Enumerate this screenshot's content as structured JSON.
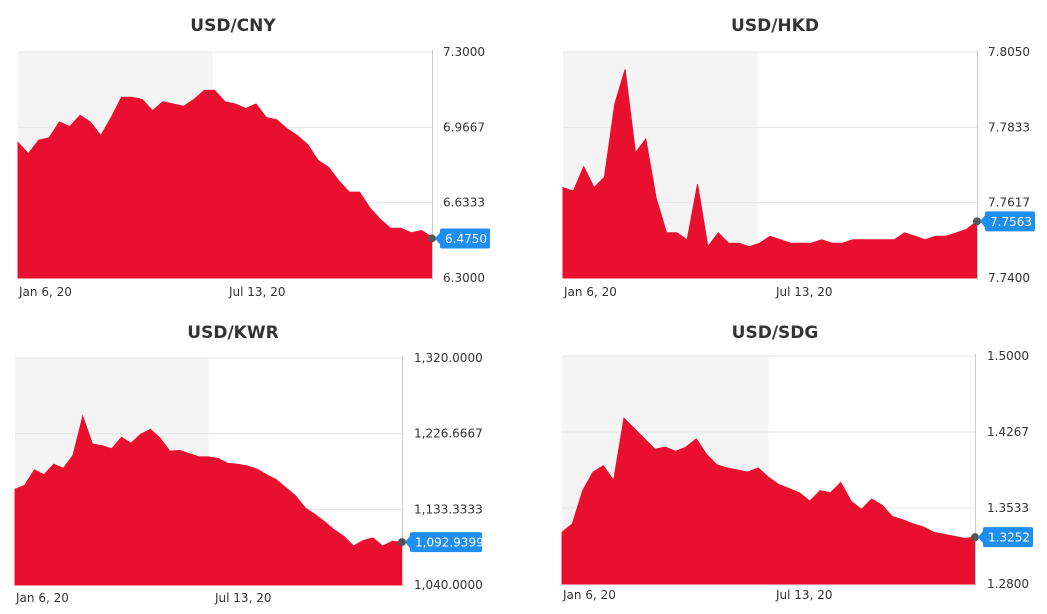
{
  "colors": {
    "area": "#e8102e",
    "shade": "#f4f4f4",
    "grid": "#e6e6e6",
    "badge": "#1f8ef1",
    "axis": "#cccccc"
  },
  "chart_data": [
    {
      "type": "area",
      "title": "USD/CNY",
      "x_ticks": [
        "Jan 6, 20",
        "Jul 13, 20"
      ],
      "y_ticks": [
        "7.3000",
        "6.9667",
        "6.6333",
        "6.3000"
      ],
      "ylim": [
        6.3,
        7.3
      ],
      "current_label": "6.4750",
      "current_value": 6.475,
      "shaded_range": [
        0,
        0.47
      ],
      "values": [
        6.9,
        6.85,
        6.91,
        6.92,
        6.99,
        6.97,
        7.02,
        6.99,
        6.93,
        7.01,
        7.1,
        7.1,
        7.09,
        7.04,
        7.08,
        7.07,
        7.06,
        7.09,
        7.13,
        7.13,
        7.08,
        7.07,
        7.05,
        7.07,
        7.01,
        7.0,
        6.96,
        6.93,
        6.89,
        6.82,
        6.79,
        6.73,
        6.68,
        6.68,
        6.61,
        6.56,
        6.52,
        6.52,
        6.5,
        6.51,
        6.48
      ]
    },
    {
      "type": "area",
      "title": "USD/HKD",
      "x_ticks": [
        "Jan 6, 20",
        "Jul 13, 20"
      ],
      "y_ticks": [
        "7.8050",
        "7.7833",
        "7.7617",
        "7.7400"
      ],
      "ylim": [
        7.74,
        7.805
      ],
      "current_label": "7.7563",
      "current_value": 7.7563,
      "shaded_range": [
        0,
        0.47
      ],
      "values": [
        7.766,
        7.765,
        7.772,
        7.766,
        7.769,
        7.79,
        7.8,
        7.776,
        7.78,
        7.763,
        7.753,
        7.753,
        7.751,
        7.767,
        7.749,
        7.753,
        7.75,
        7.75,
        7.749,
        7.75,
        7.752,
        7.751,
        7.75,
        7.75,
        7.75,
        7.751,
        7.75,
        7.75,
        7.751,
        7.751,
        7.751,
        7.751,
        7.751,
        7.753,
        7.752,
        7.751,
        7.752,
        7.752,
        7.753,
        7.754,
        7.7563
      ]
    },
    {
      "type": "area",
      "title": "USD/KWR",
      "x_ticks": [
        "Jan 6, 20",
        "Jul 13, 20"
      ],
      "y_ticks": [
        "1,320.0000",
        "1,226.6667",
        "1,133.3333",
        "1,040.0000"
      ],
      "ylim": [
        1040,
        1320
      ],
      "current_label": "1,092.9399",
      "current_value": 1092.9399,
      "shaded_range": [
        0,
        0.5
      ],
      "values": [
        1158,
        1163,
        1182,
        1176,
        1189,
        1184,
        1200,
        1248,
        1214,
        1212,
        1208,
        1222,
        1215,
        1226,
        1232,
        1221,
        1205,
        1206,
        1202,
        1198,
        1198,
        1196,
        1190,
        1189,
        1187,
        1183,
        1176,
        1170,
        1160,
        1150,
        1135,
        1127,
        1118,
        1108,
        1100,
        1088,
        1095,
        1098,
        1088,
        1094,
        1092.94
      ]
    },
    {
      "type": "area",
      "title": "USD/SDG",
      "x_ticks": [
        "Jan 6, 20",
        "Jul 13, 20"
      ],
      "y_ticks": [
        "1.5000",
        "1.4267",
        "1.3533",
        "1.2800"
      ],
      "ylim": [
        1.28,
        1.5
      ],
      "current_label": "1.3252",
      "current_value": 1.3252,
      "shaded_range": [
        0,
        0.5
      ],
      "values": [
        1.33,
        1.338,
        1.37,
        1.388,
        1.394,
        1.38,
        1.44,
        1.43,
        1.42,
        1.41,
        1.412,
        1.408,
        1.412,
        1.42,
        1.405,
        1.395,
        1.392,
        1.39,
        1.388,
        1.392,
        1.383,
        1.376,
        1.372,
        1.368,
        1.36,
        1.37,
        1.368,
        1.378,
        1.36,
        1.352,
        1.362,
        1.356,
        1.345,
        1.342,
        1.338,
        1.335,
        1.33,
        1.328,
        1.326,
        1.324,
        1.3252
      ]
    }
  ]
}
